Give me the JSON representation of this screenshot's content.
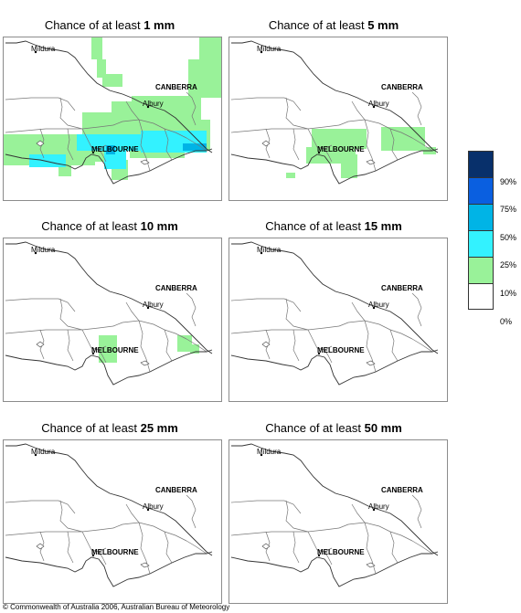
{
  "panels": [
    {
      "prefix": "Chance of at least ",
      "amount": "1 mm"
    },
    {
      "prefix": "Chance of at least ",
      "amount": "5 mm"
    },
    {
      "prefix": "Chance of at least ",
      "amount": "10 mm"
    },
    {
      "prefix": "Chance of at least ",
      "amount": "15 mm"
    },
    {
      "prefix": "Chance of at least ",
      "amount": "25 mm"
    },
    {
      "prefix": "Chance of at least ",
      "amount": "50 mm"
    }
  ],
  "cities": {
    "mildura": "Mildura",
    "canberra": "CANBERRA",
    "albury": "Albury",
    "melbourne": "MELBOURNE"
  },
  "legend": {
    "labels": [
      "90%",
      "75%",
      "50%",
      "25%",
      "10%",
      "0%"
    ],
    "colors": [
      "#08306b",
      "#0a5fe0",
      "#00b4e6",
      "#33f2ff",
      "#99f299",
      "#ffffff"
    ]
  },
  "copyright": "© Commonwealth of Australia 2006, Australian Bureau of Meteorology"
}
